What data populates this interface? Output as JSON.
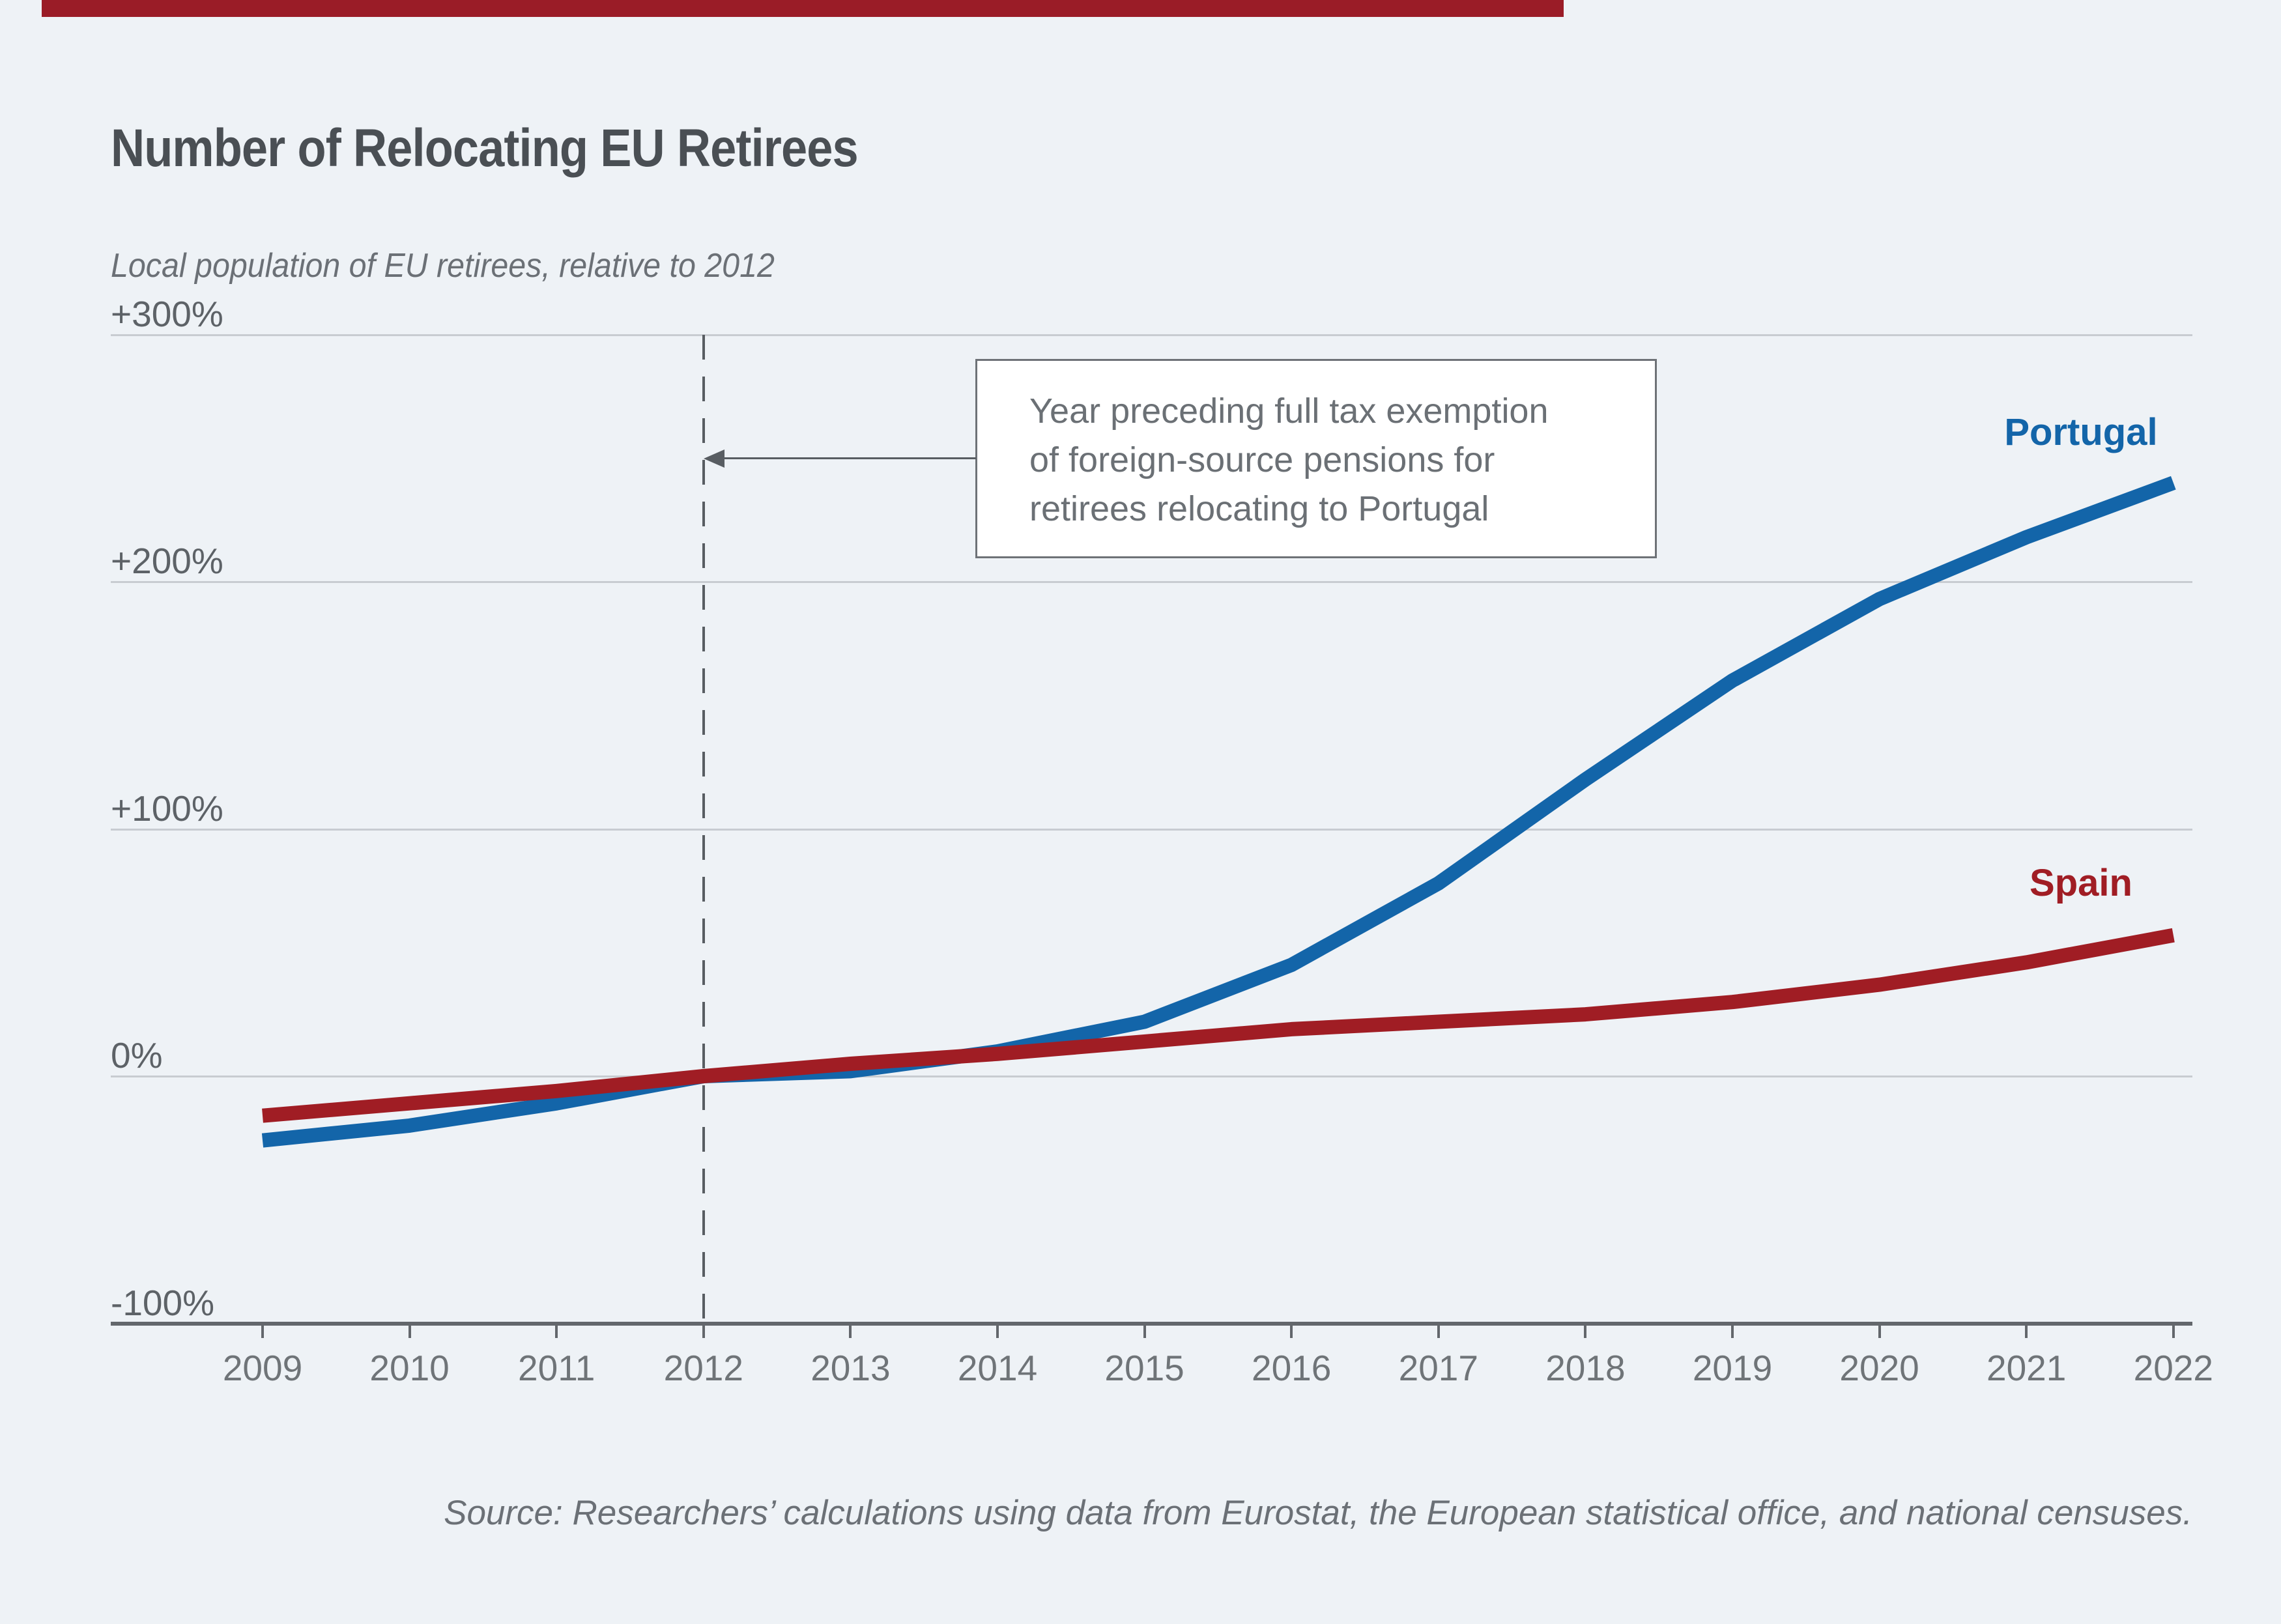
{
  "page": {
    "background_color": "#eef2f6",
    "accent_bar_color": "#9a1c27"
  },
  "header": {
    "title": "Number of Relocating EU Retirees",
    "subtitle": "Local population of EU retirees, relative to 2012"
  },
  "chart_data": {
    "type": "line",
    "title": "Number of Relocating EU Retirees",
    "ylabel": "Local population of EU retirees, relative to 2012",
    "x": [
      2009,
      2010,
      2011,
      2012,
      2013,
      2014,
      2015,
      2016,
      2017,
      2018,
      2019,
      2020,
      2021,
      2022
    ],
    "series": [
      {
        "name": "Portugal",
        "color": "#1365a9",
        "values": [
          -26,
          -20,
          -11,
          0,
          2,
          10,
          22,
          45,
          78,
          120,
          160,
          193,
          218,
          240
        ]
      },
      {
        "name": "Spain",
        "color": "#a01d24",
        "values": [
          -16,
          -11,
          -6,
          0,
          5,
          9,
          14,
          19,
          22,
          25,
          30,
          37,
          46,
          57
        ]
      }
    ],
    "ylim": [
      -100,
      300
    ],
    "ytick_values": [
      300,
      200,
      100,
      0,
      -100
    ],
    "ytick_labels": [
      "+300%",
      "+200%",
      "+100%",
      "0%",
      "-100%"
    ],
    "grid": "horizontal gridlines on",
    "legend_position": "labels at line ends, right side",
    "reference_line": {
      "x": 2012,
      "style": "vertical dashed"
    },
    "annotation": {
      "line1": "Year preceding full tax exemption",
      "line2": "of foreign-source pensions for",
      "line3": "retirees relocating to Portugal",
      "arrow_points_to": "dashed line at 2012"
    }
  },
  "footer": {
    "source": "Source: Researchers’ calculations using data from Eurostat, the European statistical office, and national censuses."
  }
}
